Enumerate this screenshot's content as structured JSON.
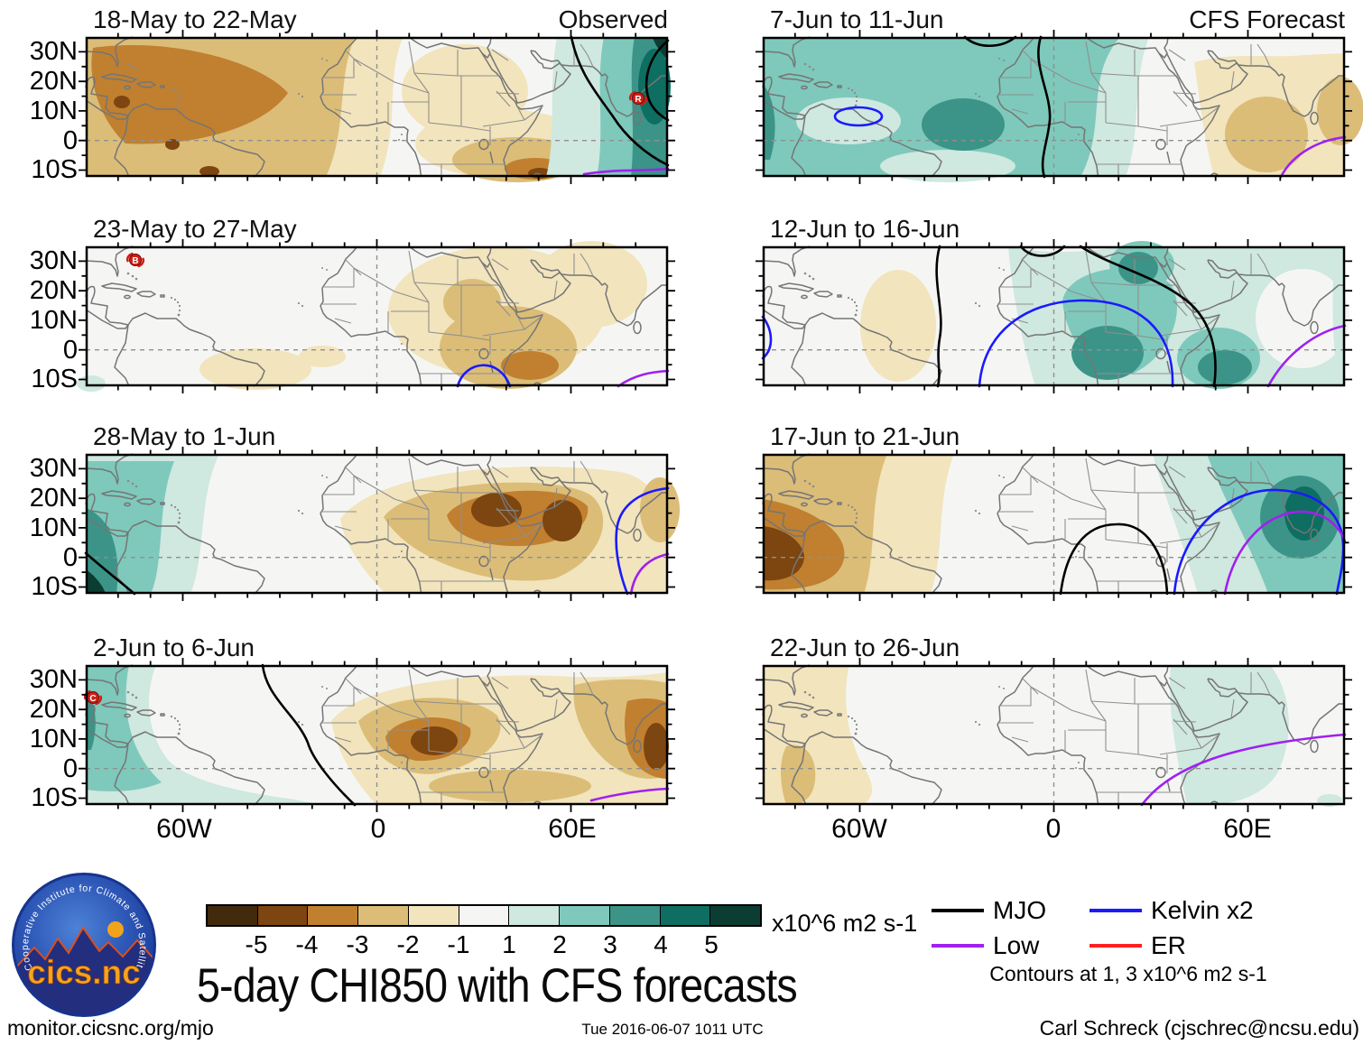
{
  "title": "5-day CHI850 with CFS forecasts",
  "panels": [
    {
      "title": "18-May to 22-May",
      "corner_label": "Observed",
      "marker": "R"
    },
    {
      "title": "7-Jun to 11-Jun",
      "corner_label": "CFS Forecast",
      "marker": ""
    },
    {
      "title": "23-May to 27-May",
      "corner_label": "",
      "marker": "B"
    },
    {
      "title": "12-Jun to 16-Jun",
      "corner_label": "",
      "marker": ""
    },
    {
      "title": "28-May to 1-Jun",
      "corner_label": "",
      "marker": ""
    },
    {
      "title": "17-Jun to 21-Jun",
      "corner_label": "",
      "marker": ""
    },
    {
      "title": "2-Jun to 6-Jun",
      "corner_label": "",
      "marker": "C"
    },
    {
      "title": "22-Jun to 26-Jun",
      "corner_label": "",
      "marker": ""
    }
  ],
  "axes": {
    "y_labels": [
      "30N",
      "20N",
      "10N",
      "0",
      "10S"
    ],
    "x_labels": [
      "60W",
      "0",
      "60E"
    ]
  },
  "colorbar": {
    "tick_labels": [
      "-5",
      "-4",
      "-3",
      "-2",
      "-1",
      "1",
      "2",
      "3",
      "4",
      "5"
    ],
    "colors": [
      "#422a0c",
      "#7d450f",
      "#c08030",
      "#dbbd78",
      "#f2e4bc",
      "#f5f6f4",
      "#cfe8e0",
      "#7ec9bb",
      "#3c9488",
      "#0e6e62",
      "#0b3d33"
    ],
    "units": "x10^6 m2 s-1"
  },
  "legend": {
    "items": [
      {
        "label": "MJO",
        "color": "#000000"
      },
      {
        "label": "Low",
        "color": "#a020f0"
      },
      {
        "label": "Kelvin x2",
        "color": "#1a1aff"
      },
      {
        "label": "ER",
        "color": "#ff2020"
      }
    ],
    "note": "Contours at 1, 3 x10^6 m2 s-1"
  },
  "logo": {
    "text": "cics.nc",
    "ring_text": "Cooperative Institute for Climate and Satellites"
  },
  "footer": {
    "left": "monitor.cicsnc.org/mjo",
    "center": "Tue 2016-06-07 1011 UTC",
    "right": "Carl Schreck (cjschrec@ncsu.edu)"
  },
  "chart_data": {
    "type": "map-panels",
    "variable": "5-day mean CHI850 (850-hPa velocity potential) anomalies",
    "units": "x10^6 m2 s-1",
    "colorbar_levels": [
      -5,
      -4,
      -3,
      -2,
      -1,
      1,
      2,
      3,
      4,
      5
    ],
    "shading": "brown = negative anomalies, teal = positive anomalies",
    "map_extent": {
      "lon": [
        -90,
        90
      ],
      "lat": [
        -12,
        35
      ]
    },
    "x_ticks_labeled": [
      "60W",
      "0",
      "60E"
    ],
    "y_ticks_labeled": [
      "30N",
      "20N",
      "10N",
      "0",
      "10S"
    ],
    "columns": [
      "Observed",
      "CFS Forecast"
    ],
    "contour_overlays": {
      "MJO": "black",
      "Low": "purple",
      "Kelvin x2": "blue",
      "ER": "red",
      "contour_levels": "1, 3 x10^6 m2 s-1"
    },
    "panels": [
      {
        "title": "18-May to 22-May",
        "column": "Observed",
        "features": "Strong negative (brown) anomalies over Caribbean and tropical Atlantic; negative patch over southern Africa; strong positive (teal) anomalies over India and Bay of Bengal inside black MJO contour; purple Low contour in far southeast; storm marker R near southeast India"
      },
      {
        "title": "7-Jun to 11-Jun",
        "column": "CFS Forecast",
        "features": "Positive anomalies over tropical Atlantic and northern South America with dark maximum in mid-Atlantic; blue Kelvin contour near Venezuela/Trinidad; weak negative anomalies from Sudan and Ethiopia to India; black MJO contour along West African coast; purple Low contour southwest of India"
      },
      {
        "title": "23-May to 27-May",
        "column": "Observed",
        "features": "Weak negative anomalies over central and eastern Africa and Arabia; near-neutral Atlantic with weak negatives off Brazil; blue Kelvin contour arc over Lake Victoria region; purple Low contour at bottom right; storm marker B near the Bahamas"
      },
      {
        "title": "12-Jun to 16-Jun",
        "column": "CFS Forecast",
        "features": "Positive anomalies across Africa with maxima over Congo basin, Sudan and Tanzania; weak negative patch in western tropical Atlantic; large blue Kelvin contour dome over West/Central Africa; black MJO contours in mid-Atlantic and over East Africa; purple Low contour over western Indian Ocean"
      },
      {
        "title": "28-May to 1-Jun",
        "column": "Observed",
        "features": "Positive anomalies over Caribbean and eastern Pacific with dark maximum at bottom-left; strong negative anomalies over Sahel, Sudan and Ethiopia extending to India; blue Kelvin and purple Low contours near India; black contour at bottom-left corner"
      },
      {
        "title": "17-Jun to 21-Jun",
        "column": "CFS Forecast",
        "features": "Negative anomalies over Caribbean and northern South America with maximum near Colombia/Venezuela; positive anomalies from Arabia to India with maximum over Arabian Sea; blue Kelvin and purple Low contour domes over Arabian Sea; black MJO contour dome over Congo basin"
      },
      {
        "title": "2-Jun to 6-Jun",
        "column": "Observed",
        "features": "Positive anomalies along western Atlantic, Caribbean and eastern Pacific; negative anomalies over West Africa (maximum near Ghana) and over India; black MJO contour through mid-Atlantic; purple Low contour south of India; storm marker C over the Gulf of Mexico"
      },
      {
        "title": "22-Jun to 26-Jun",
        "column": "CFS Forecast",
        "features": "Weak negative anomalies over Caribbean and Andes; weak positive anomalies from Egypt and Arabia through East Africa; purple Low contour rising toward Sri Lanka; no black contours"
      }
    ]
  }
}
